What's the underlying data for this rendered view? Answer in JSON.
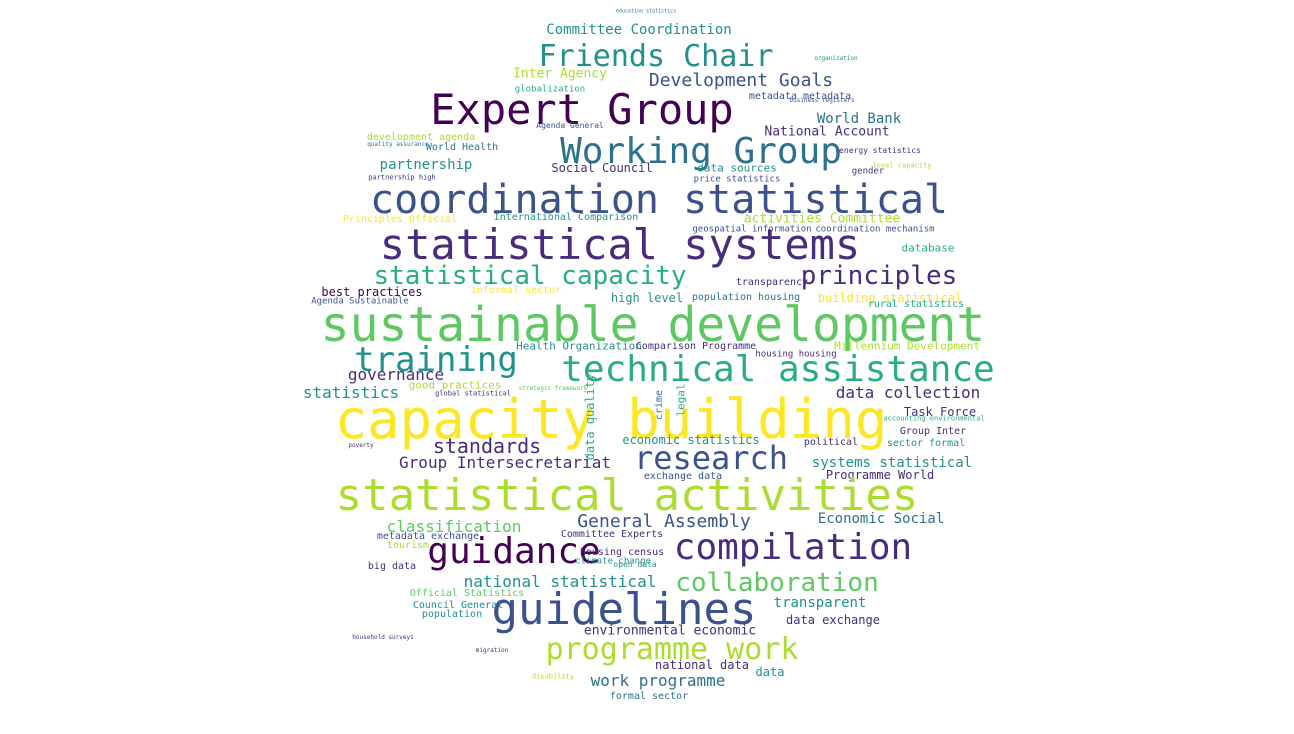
{
  "palette": {
    "dark_purple": "#440154",
    "indigo": "#472d7b",
    "blue_purple": "#3b528b",
    "steel_blue": "#2c728e",
    "teal": "#21918c",
    "green_teal": "#28ae80",
    "green": "#5ec962",
    "lime": "#addc30",
    "yellow": "#fde725"
  },
  "words": [
    {
      "text": "education statistics"
    },
    {
      "text": "Committee Coordination"
    },
    {
      "text": "Friends Chair"
    },
    {
      "text": "organization"
    },
    {
      "text": "Inter Agency"
    },
    {
      "text": "Development Goals"
    },
    {
      "text": "globalization"
    },
    {
      "text": "Expert Group"
    },
    {
      "text": "metadata metadata"
    },
    {
      "text": "business registers"
    },
    {
      "text": "development agenda"
    },
    {
      "text": "Agenda General"
    },
    {
      "text": "World Bank"
    },
    {
      "text": "National Account"
    },
    {
      "text": "quality assurance"
    },
    {
      "text": "World Health"
    },
    {
      "text": "Working Group"
    },
    {
      "text": "energy statistics"
    },
    {
      "text": "partnership"
    },
    {
      "text": "Social Council"
    },
    {
      "text": "data sources"
    },
    {
      "text": "gender"
    },
    {
      "text": "level capacity"
    },
    {
      "text": "partnership high"
    },
    {
      "text": "price statistics"
    },
    {
      "text": "coordination statistical"
    },
    {
      "text": "Principles Official"
    },
    {
      "text": "International Comparison"
    },
    {
      "text": "activities Committee"
    },
    {
      "text": "geospatial information"
    },
    {
      "text": "coordination mechanism"
    },
    {
      "text": "statistical systems"
    },
    {
      "text": "database"
    },
    {
      "text": "statistical capacity"
    },
    {
      "text": "principles"
    },
    {
      "text": "transparency"
    },
    {
      "text": "best practices"
    },
    {
      "text": "informal sector"
    },
    {
      "text": "Agenda Sustainable"
    },
    {
      "text": "high level"
    },
    {
      "text": "population housing"
    },
    {
      "text": "building statistical"
    },
    {
      "text": "rural statistics"
    },
    {
      "text": "sustainable development"
    },
    {
      "text": "training"
    },
    {
      "text": "Health Organization"
    },
    {
      "text": "Comparison Programme"
    },
    {
      "text": "Millennium Development"
    },
    {
      "text": "technical assistance"
    },
    {
      "text": "governance"
    },
    {
      "text": "housing housing"
    },
    {
      "text": "good practices"
    },
    {
      "text": "statistics"
    },
    {
      "text": "data collection"
    },
    {
      "text": "capacity building"
    },
    {
      "text": "Task Force"
    },
    {
      "text": "standards"
    },
    {
      "text": "economic statistics"
    },
    {
      "text": "Group Inter"
    },
    {
      "text": "political"
    },
    {
      "text": "sector formal"
    },
    {
      "text": "Group Intersecretariat"
    },
    {
      "text": "research"
    },
    {
      "text": "systems statistical"
    },
    {
      "text": "exchange data"
    },
    {
      "text": "Programme World"
    },
    {
      "text": "statistical activities"
    },
    {
      "text": "classification"
    },
    {
      "text": "General Assembly"
    },
    {
      "text": "Economic Social"
    },
    {
      "text": "metadata exchange"
    },
    {
      "text": "Committee Experts"
    },
    {
      "text": "guidance"
    },
    {
      "text": "compilation"
    },
    {
      "text": "housing census"
    },
    {
      "text": "big data"
    },
    {
      "text": "national statistical"
    },
    {
      "text": "collaboration"
    },
    {
      "text": "Official Statistics"
    },
    {
      "text": "guidelines"
    },
    {
      "text": "transparent"
    },
    {
      "text": "Council General"
    },
    {
      "text": "population"
    },
    {
      "text": "data exchange"
    },
    {
      "text": "environmental economic"
    },
    {
      "text": "programme work"
    },
    {
      "text": "national data"
    },
    {
      "text": "data"
    },
    {
      "text": "work programme"
    },
    {
      "text": "formal sector"
    },
    {
      "text": "migration"
    },
    {
      "text": "disability"
    },
    {
      "text": "data quality"
    },
    {
      "text": "crime"
    },
    {
      "text": "legal"
    },
    {
      "text": "poverty"
    },
    {
      "text": "climate change"
    },
    {
      "text": "open data"
    },
    {
      "text": "strategic framework"
    },
    {
      "text": "global statistical"
    },
    {
      "text": "accounting environmental"
    },
    {
      "text": "household surveys"
    },
    {
      "text": "tourism"
    }
  ]
}
